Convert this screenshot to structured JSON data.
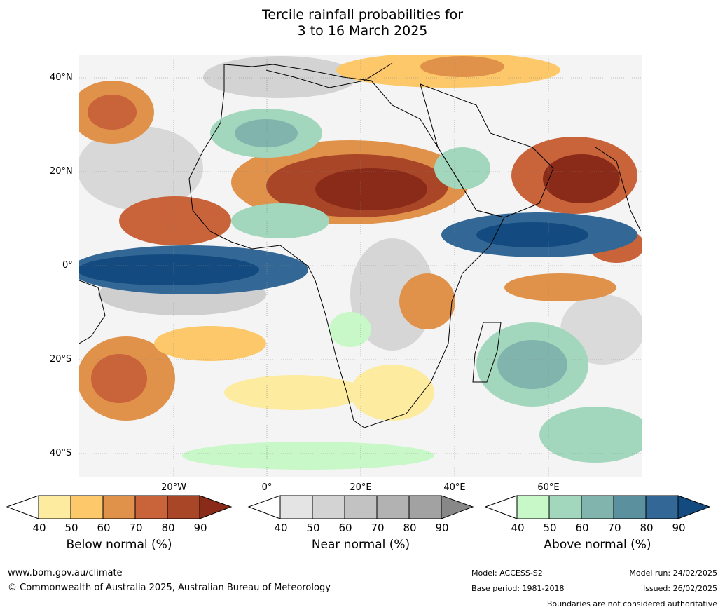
{
  "title_line1": "Tercile rainfall probabilities for",
  "title_line2": "3 to 16 March 2025",
  "lat_labels": [
    "40°N",
    "20°N",
    "0°",
    "20°S",
    "40°S"
  ],
  "lon_labels": [
    "20°W",
    "0°",
    "20°E",
    "40°E",
    "60°E"
  ],
  "legends": [
    {
      "title": "Below normal (%)",
      "ticks": [
        "40",
        "50",
        "60",
        "70",
        "80",
        "90"
      ],
      "colors": [
        "#fdeba0",
        "#fdc86a",
        "#e0914a",
        "#c9633a",
        "#a94628",
        "#8a2a18"
      ]
    },
    {
      "title": "Near normal (%)",
      "ticks": [
        "40",
        "50",
        "60",
        "70",
        "80",
        "90"
      ],
      "colors": [
        "#e4e4e4",
        "#d3d3d3",
        "#c2c2c2",
        "#b2b2b2",
        "#a2a2a2",
        "#888888"
      ]
    },
    {
      "title": "Above normal (%)",
      "ticks": [
        "40",
        "50",
        "60",
        "70",
        "80",
        "90"
      ],
      "colors": [
        "#c8f7c8",
        "#a2d7bd",
        "#80b4ac",
        "#5b919e",
        "#336896",
        "#134a80"
      ]
    }
  ],
  "footer": {
    "url": "www.bom.gov.au/climate",
    "copyright": "© Commonwealth of Australia 2025, Australian Bureau of Meteorology",
    "model": "Model: ACCESS-S2",
    "base_period": "Base period: 1981-2018",
    "model_run": "Model run: 24/02/2025",
    "issued": "Issued: 26/02/2025",
    "boundaries": "Boundaries are not considered authoritative"
  }
}
